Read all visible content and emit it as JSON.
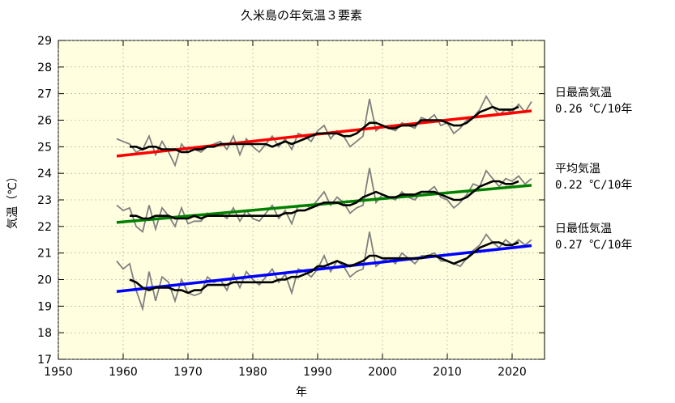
{
  "chart_data": {
    "type": "line",
    "title": "久米島の年気温３要素",
    "xlabel": "年",
    "ylabel": "気温（℃）",
    "xlim": [
      1950,
      2025
    ],
    "ylim": [
      17,
      29
    ],
    "xticks": [
      1950,
      1960,
      1970,
      1980,
      1990,
      2000,
      2010,
      2020
    ],
    "yticks": [
      17,
      18,
      19,
      20,
      21,
      22,
      23,
      24,
      25,
      26,
      27,
      28,
      29
    ],
    "plot_background": "#ffffe0",
    "grid": true,
    "colors": {
      "raw": "#808080",
      "moving_average": "#000000",
      "trend_max": "#ff0000",
      "trend_mean": "#008000",
      "trend_min": "#0000ff"
    },
    "annotations": [
      {
        "series": "max",
        "label": "日最高気温",
        "rate": "0.26 ℃/10年"
      },
      {
        "series": "mean",
        "label": "平均気温",
        "rate": "0.22 ℃/10年"
      },
      {
        "series": "min",
        "label": "日最低気温",
        "rate": "0.27 ℃/10年"
      }
    ],
    "years": [
      1959,
      1960,
      1961,
      1962,
      1963,
      1964,
      1965,
      1966,
      1967,
      1968,
      1969,
      1970,
      1971,
      1972,
      1973,
      1974,
      1975,
      1976,
      1977,
      1978,
      1979,
      1980,
      1981,
      1982,
      1983,
      1984,
      1985,
      1986,
      1987,
      1988,
      1989,
      1990,
      1991,
      1992,
      1993,
      1994,
      1995,
      1996,
      1997,
      1998,
      1999,
      2000,
      2001,
      2002,
      2003,
      2004,
      2005,
      2006,
      2007,
      2008,
      2009,
      2010,
      2011,
      2012,
      2013,
      2014,
      2015,
      2016,
      2017,
      2018,
      2019,
      2020,
      2021,
      2022,
      2023
    ],
    "series": [
      {
        "key": "max",
        "raw": [
          25.3,
          25.2,
          25.1,
          24.8,
          24.9,
          25.4,
          24.7,
          25.2,
          24.8,
          24.3,
          25.1,
          24.8,
          24.9,
          24.8,
          25.0,
          25.1,
          25.2,
          24.9,
          25.4,
          24.7,
          25.3,
          25.0,
          24.8,
          25.1,
          25.4,
          25.0,
          25.3,
          24.9,
          25.5,
          25.4,
          25.2,
          25.6,
          25.8,
          25.3,
          25.6,
          25.4,
          25.0,
          25.2,
          25.4,
          26.8,
          25.6,
          25.8,
          25.7,
          25.6,
          25.9,
          25.8,
          25.7,
          26.1,
          26.0,
          26.2,
          25.8,
          25.9,
          25.5,
          25.7,
          26.0,
          26.1,
          26.4,
          26.9,
          26.5,
          26.2,
          26.4,
          26.3,
          26.6,
          26.3,
          26.7
        ],
        "moving_average": [
          null,
          null,
          25.0,
          25.0,
          24.9,
          25.0,
          25.0,
          24.9,
          24.9,
          24.9,
          24.8,
          24.8,
          24.9,
          24.9,
          25.0,
          25.0,
          25.1,
          25.1,
          25.1,
          25.1,
          25.1,
          25.1,
          25.1,
          25.1,
          25.0,
          25.1,
          25.2,
          25.1,
          25.2,
          25.3,
          25.4,
          25.5,
          25.5,
          25.5,
          25.5,
          25.4,
          25.4,
          25.5,
          25.7,
          25.9,
          25.9,
          25.8,
          25.7,
          25.7,
          25.8,
          25.8,
          25.8,
          26.0,
          26.0,
          26.0,
          26.0,
          25.9,
          25.8,
          25.8,
          25.9,
          26.1,
          26.3,
          26.4,
          26.5,
          26.4,
          26.4,
          26.4,
          26.5,
          null,
          null
        ],
        "trend": [
          24.65,
          26.35
        ]
      },
      {
        "key": "mean",
        "raw": [
          22.8,
          22.6,
          22.7,
          22.0,
          21.8,
          22.8,
          21.9,
          22.7,
          22.4,
          22.0,
          22.7,
          22.1,
          22.2,
          22.2,
          22.5,
          22.4,
          22.5,
          22.3,
          22.7,
          22.2,
          22.6,
          22.3,
          22.2,
          22.5,
          22.8,
          22.3,
          22.6,
          22.1,
          22.8,
          22.8,
          22.7,
          23.0,
          23.3,
          22.8,
          23.1,
          22.9,
          22.5,
          22.7,
          22.8,
          24.2,
          22.9,
          23.2,
          23.1,
          23.0,
          23.3,
          23.1,
          23.0,
          23.3,
          23.3,
          23.5,
          23.1,
          23.0,
          22.7,
          22.9,
          23.2,
          23.6,
          23.5,
          24.1,
          23.8,
          23.5,
          23.8,
          23.7,
          23.9,
          23.6,
          23.8
        ],
        "moving_average": [
          null,
          null,
          22.4,
          22.4,
          22.3,
          22.3,
          22.4,
          22.4,
          22.4,
          22.3,
          22.3,
          22.3,
          22.4,
          22.3,
          22.4,
          22.4,
          22.4,
          22.4,
          22.4,
          22.4,
          22.4,
          22.4,
          22.4,
          22.4,
          22.4,
          22.4,
          22.5,
          22.5,
          22.6,
          22.6,
          22.7,
          22.8,
          22.9,
          22.9,
          22.9,
          22.8,
          22.8,
          22.9,
          23.1,
          23.2,
          23.3,
          23.2,
          23.1,
          23.1,
          23.2,
          23.2,
          23.2,
          23.3,
          23.3,
          23.3,
          23.2,
          23.1,
          23.0,
          23.0,
          23.1,
          23.3,
          23.5,
          23.6,
          23.7,
          23.7,
          23.6,
          23.6,
          23.7,
          null,
          null
        ],
        "trend": [
          22.15,
          23.55
        ]
      },
      {
        "key": "min",
        "raw": [
          20.7,
          20.4,
          20.6,
          19.6,
          18.9,
          20.3,
          19.2,
          20.1,
          19.9,
          19.2,
          20.0,
          19.5,
          19.4,
          19.5,
          20.1,
          19.9,
          20.0,
          19.6,
          20.2,
          19.7,
          20.3,
          20.0,
          19.8,
          20.1,
          20.4,
          19.9,
          20.2,
          19.5,
          20.4,
          20.3,
          20.1,
          20.4,
          20.9,
          20.3,
          20.7,
          20.5,
          20.1,
          20.3,
          20.4,
          21.8,
          20.5,
          20.7,
          20.8,
          20.6,
          21.0,
          20.8,
          20.6,
          20.9,
          20.9,
          21.0,
          20.7,
          20.7,
          20.6,
          20.5,
          20.8,
          21.1,
          21.3,
          21.7,
          21.4,
          21.2,
          21.5,
          21.3,
          21.5,
          21.3,
          21.5
        ],
        "moving_average": [
          null,
          null,
          20.0,
          19.9,
          19.7,
          19.6,
          19.7,
          19.7,
          19.7,
          19.6,
          19.6,
          19.5,
          19.6,
          19.6,
          19.8,
          19.8,
          19.8,
          19.8,
          19.9,
          19.9,
          19.9,
          19.9,
          19.9,
          19.9,
          19.9,
          20.0,
          20.0,
          20.1,
          20.1,
          20.2,
          20.3,
          20.5,
          20.5,
          20.6,
          20.7,
          20.6,
          20.5,
          20.6,
          20.7,
          20.9,
          20.9,
          20.8,
          20.8,
          20.8,
          20.8,
          20.8,
          20.8,
          20.8,
          20.9,
          20.9,
          20.8,
          20.7,
          20.6,
          20.7,
          20.8,
          21.0,
          21.2,
          21.3,
          21.4,
          21.4,
          21.3,
          21.3,
          21.4,
          null,
          null
        ],
        "trend": [
          19.55,
          21.28
        ]
      }
    ]
  }
}
